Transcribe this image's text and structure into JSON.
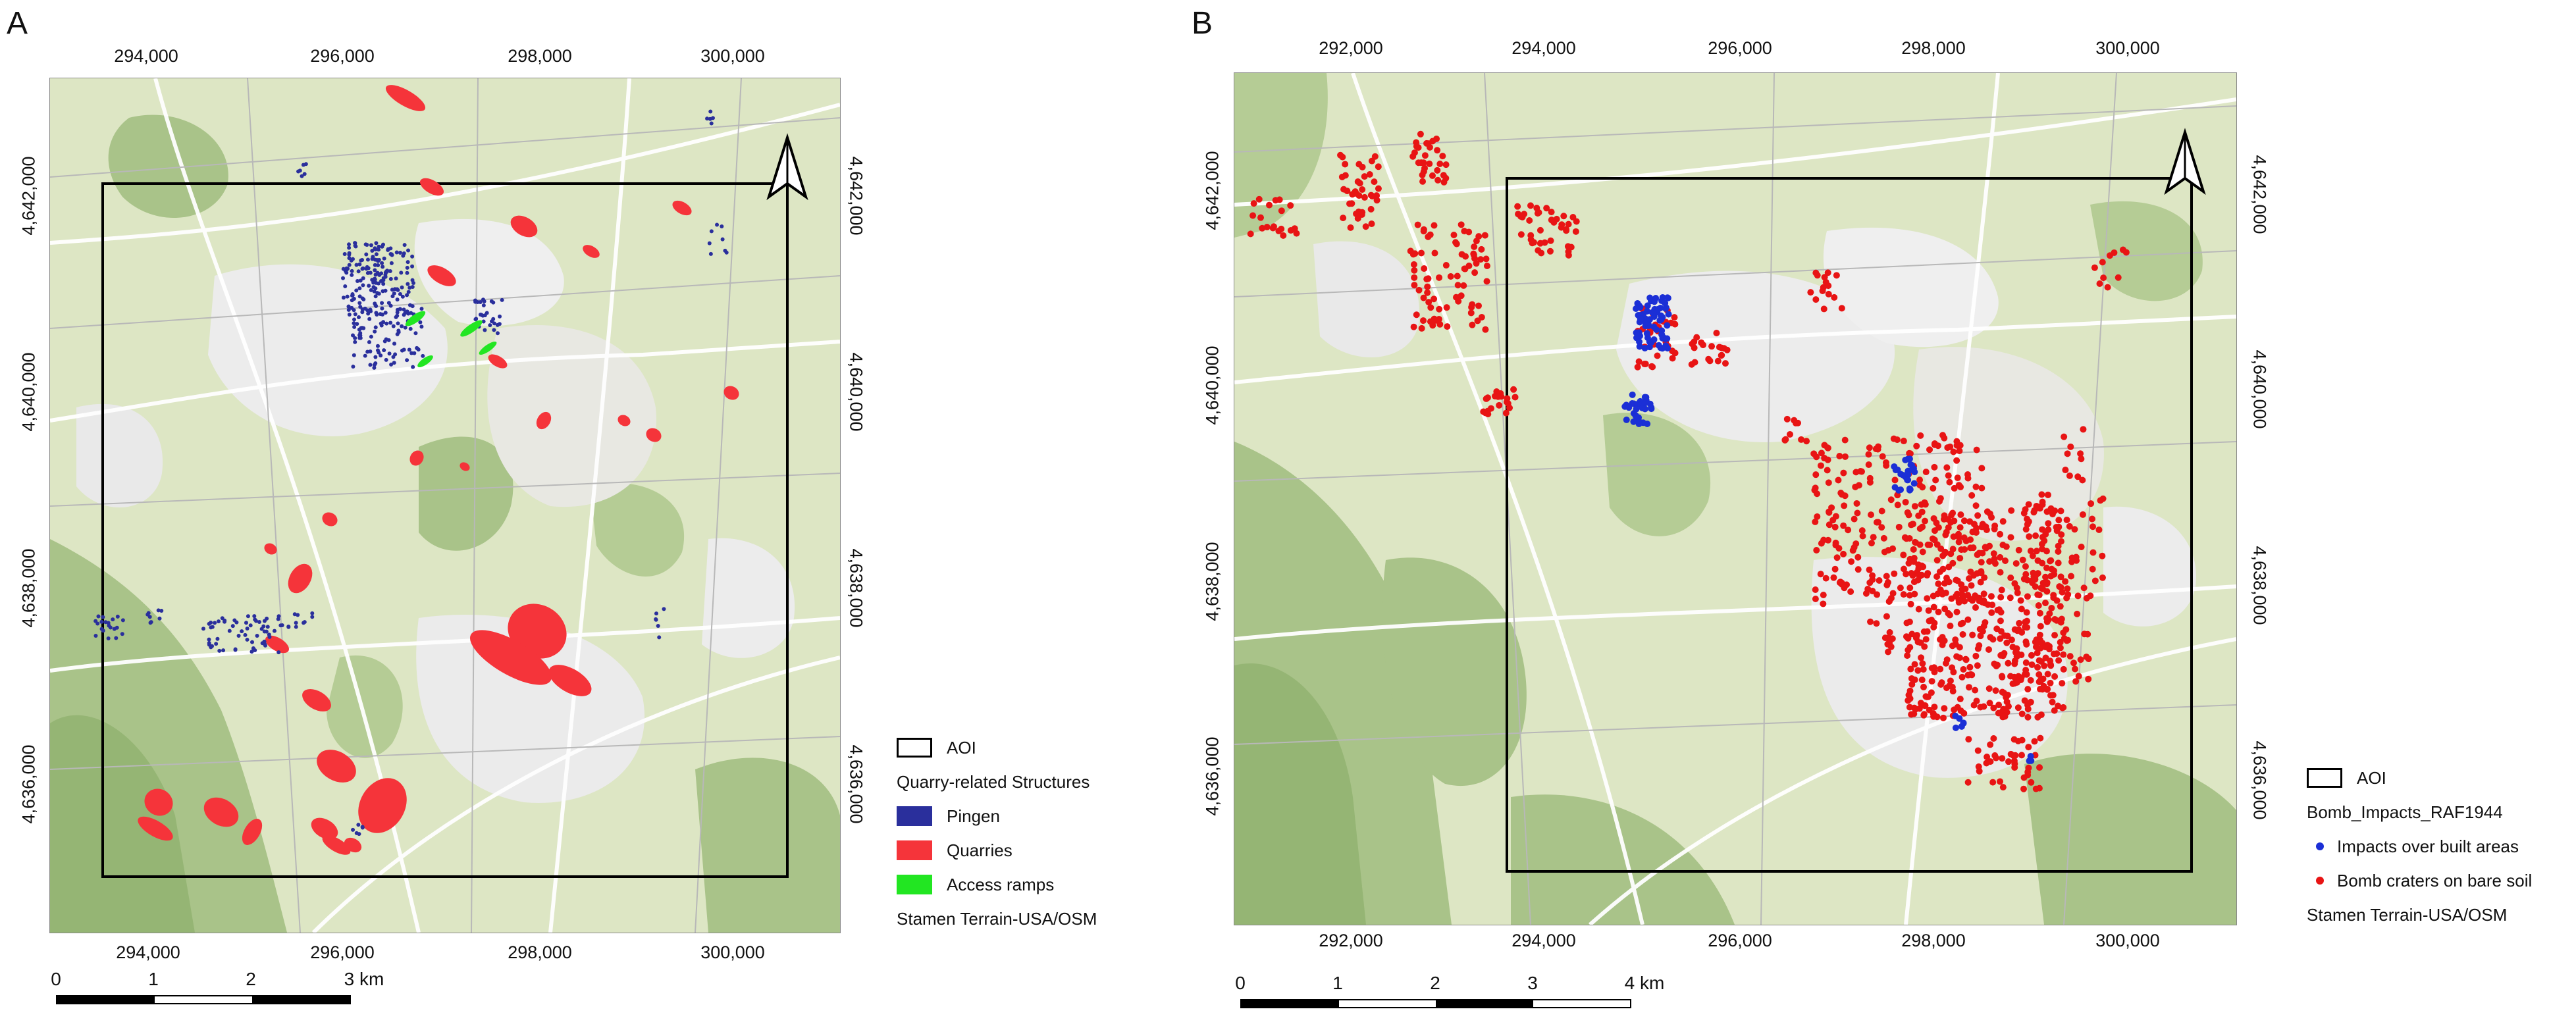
{
  "panelA": {
    "letter": "A",
    "x_ticks": [
      "294,000",
      "296,000",
      "298,000",
      "300,000"
    ],
    "y_ticks": [
      "4,642,000",
      "4,640,000",
      "4,638,000",
      "4,636,000"
    ],
    "legend": {
      "aoi_label": "AOI",
      "group_title": "Quarry-related Structures",
      "items": [
        {
          "label": "Pingen",
          "color": "#2a2f9c"
        },
        {
          "label": "Quarries",
          "color": "#f5343a"
        },
        {
          "label": "Access ramps",
          "color": "#22e622"
        }
      ],
      "basemap": "Stamen Terrain-USA/OSM"
    },
    "scale_labels": [
      "0",
      "1",
      "2",
      "3 km"
    ]
  },
  "panelB": {
    "letter": "B",
    "x_ticks": [
      "292,000",
      "294,000",
      "296,000",
      "298,000",
      "300,000"
    ],
    "y_ticks": [
      "4,642,000",
      "4,640,000",
      "4,638,000",
      "4,636,000"
    ],
    "legend": {
      "aoi_label": "AOI",
      "group_title": "Bomb_Impacts_RAF1944",
      "items": [
        {
          "label": "Impacts over built areas",
          "color": "#1b2fd6"
        },
        {
          "label": "Bomb craters on bare soil",
          "color": "#e81414"
        }
      ],
      "basemap": "Stamen Terrain-USA/OSM"
    },
    "scale_labels": [
      "0",
      "1",
      "2",
      "3",
      "4 km"
    ]
  },
  "colors": {
    "map_base": "#dde6c4",
    "forest": "#a9c389",
    "urban": "#eeeeee",
    "road": "#ffffff",
    "aoi": "#000000"
  }
}
